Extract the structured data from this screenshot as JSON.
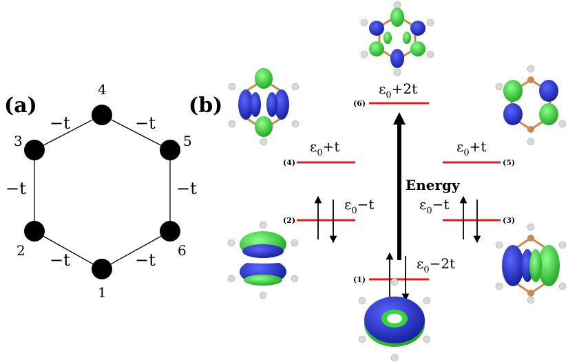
{
  "panel_a": {
    "label": "(a)",
    "nodes": [
      "1",
      "2",
      "3",
      "4",
      "5",
      "6"
    ],
    "bonds": [
      "−t",
      "−t",
      "−t",
      "−t",
      "−t",
      "−t"
    ]
  },
  "panel_b": {
    "label": "(b)",
    "axis_label": "Energy",
    "levels": [
      {
        "index": "(1)",
        "energy_base": "ε",
        "energy_sub": "0",
        "energy_rest": "−2t"
      },
      {
        "index": "(2)",
        "energy_base": "ε",
        "energy_sub": "0",
        "energy_rest": "−t"
      },
      {
        "index": "(3)",
        "energy_base": "ε",
        "energy_sub": "0",
        "energy_rest": "−t"
      },
      {
        "index": "(4)",
        "energy_base": "ε",
        "energy_sub": "0",
        "energy_rest": "+t"
      },
      {
        "index": "(5)",
        "energy_base": "ε",
        "energy_sub": "0",
        "energy_rest": "+t"
      },
      {
        "index": "(6)",
        "energy_base": "ε",
        "energy_sub": "0",
        "energy_rest": "+2t"
      }
    ]
  },
  "colors": {
    "level_line": "#e31a1c",
    "lobe_blue": "#1f2bd6",
    "lobe_green": "#36d836",
    "carbon": "#c88a4a",
    "hydrogen": "#d9d9d9"
  }
}
